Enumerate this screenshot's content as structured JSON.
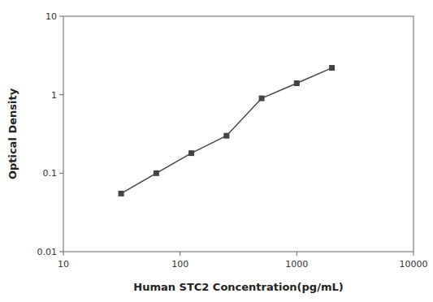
{
  "chart_data": {
    "type": "line",
    "x": [
      31.25,
      62.5,
      125,
      250,
      500,
      1000,
      2000
    ],
    "values": [
      0.055,
      0.1,
      0.18,
      0.3,
      0.9,
      1.4,
      2.2
    ],
    "xlabel": "Human STC2 Concentration(pg/mL)",
    "ylabel": "Optical Density",
    "xlim": [
      10,
      10000
    ],
    "ylim": [
      0.01,
      10
    ],
    "xticks": [
      10,
      100,
      1000,
      10000
    ],
    "yticks": [
      0.01,
      0.1,
      1,
      10
    ],
    "log": true,
    "grid": false,
    "color": "#444444",
    "marker": "square"
  }
}
